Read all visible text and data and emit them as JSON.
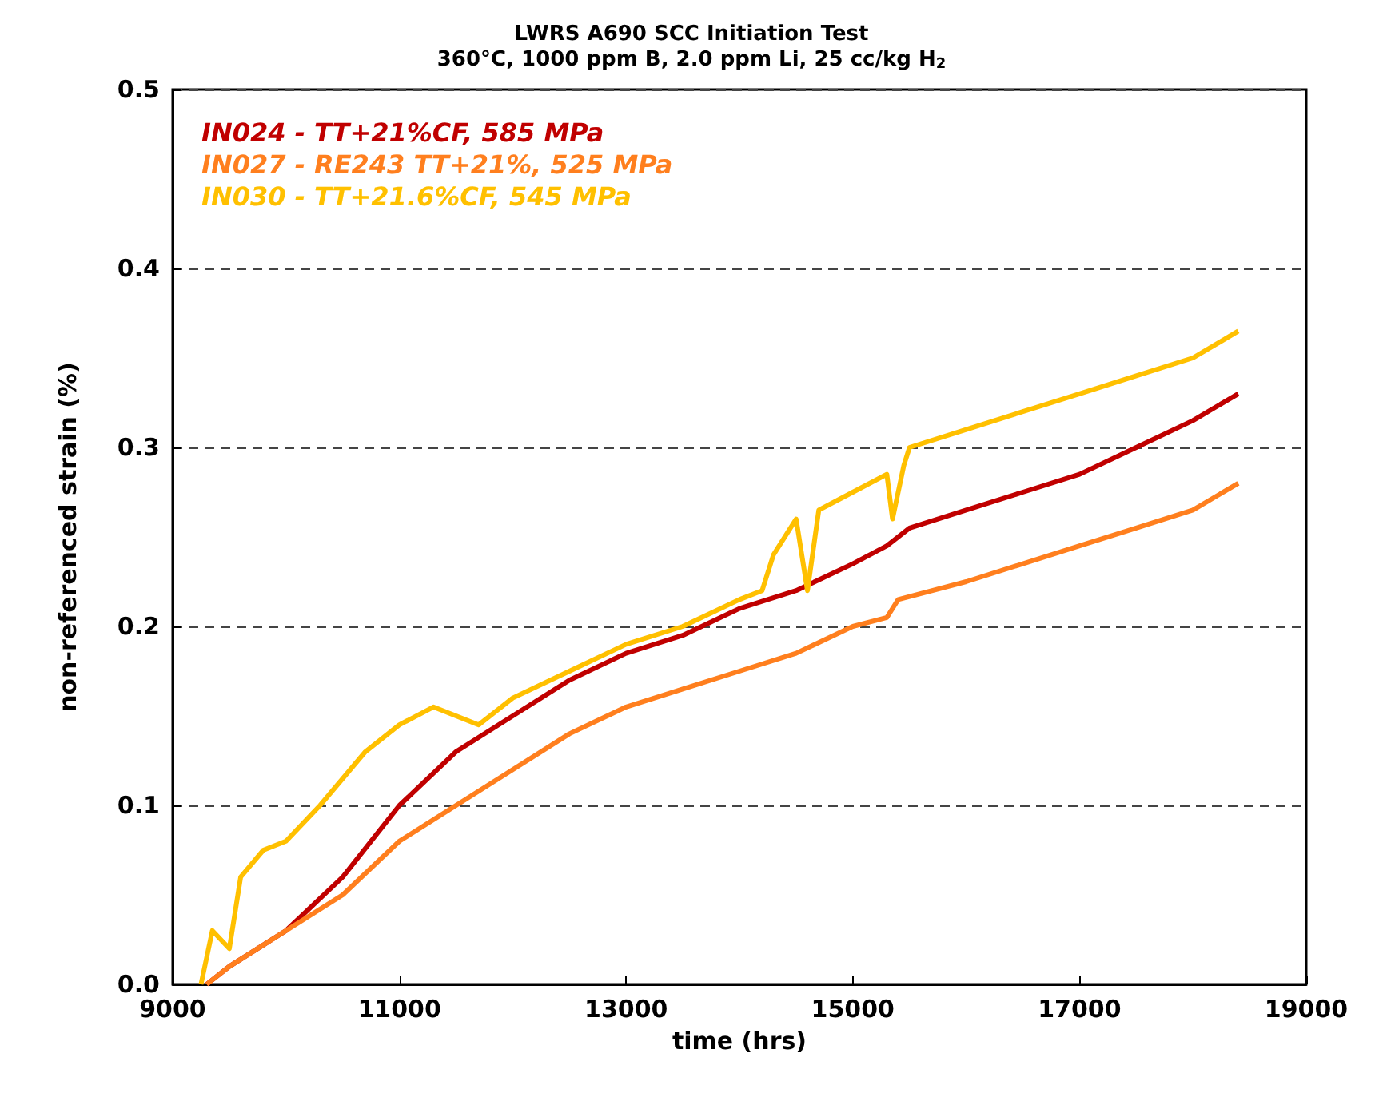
{
  "chart_data": {
    "type": "line",
    "title": "LWRS A690 SCC Initiation Test",
    "subtitle": "360°C, 1000 ppm B, 2.0 ppm Li, 25 cc/kg H$_{2}$",
    "xlabel": "time (hrs)",
    "ylabel": "non-referenced strain (%)",
    "xlim": [
      9000,
      19000
    ],
    "xticks": [
      9000,
      11000,
      13000,
      15000,
      17000,
      19000
    ],
    "ylim": [
      0,
      0.5
    ],
    "yticks": [
      {
        "value": 0,
        "label": "0.0"
      },
      0.1,
      0.2,
      0.3,
      0.4,
      0.5
    ],
    "grid": "y",
    "legend": "top left",
    "marker": "none",
    "line_style": "solid",
    "series": [
      {
        "name": "IN024 - TT+21%CF, 585 MPa",
        "color": "#c00000",
        "x": [
          9300,
          9500,
          10000,
          10500,
          11000,
          11500,
          12000,
          12500,
          13000,
          13500,
          14000,
          14500,
          15000,
          15300,
          15500,
          16000,
          16500,
          17000,
          17500,
          18000,
          18400
        ],
        "values": [
          0,
          0.01,
          0.03,
          0.06,
          0.1,
          0.13,
          0.15,
          0.17,
          0.185,
          0.195,
          0.21,
          0.22,
          0.235,
          0.245,
          0.255,
          0.265,
          0.275,
          0.285,
          0.3,
          0.315,
          0.33
        ]
      },
      {
        "name": "IN027 - RE243 TT+21%, 525 MPa",
        "color": "#ff7f1e",
        "x": [
          9300,
          9500,
          10000,
          10500,
          11000,
          11500,
          12000,
          12500,
          13000,
          13500,
          14000,
          14500,
          15000,
          15300,
          15400,
          16000,
          16500,
          17000,
          17500,
          18000,
          18400
        ],
        "values": [
          0,
          0.01,
          0.03,
          0.05,
          0.08,
          0.1,
          0.12,
          0.14,
          0.155,
          0.165,
          0.175,
          0.185,
          0.2,
          0.205,
          0.215,
          0.225,
          0.235,
          0.245,
          0.255,
          0.265,
          0.28
        ]
      },
      {
        "name": "IN030 - TT+21.6%CF, 545 MPa",
        "color": "#ffc000",
        "x": [
          9250,
          9350,
          9500,
          9600,
          9800,
          10000,
          10300,
          10700,
          11000,
          11300,
          11700,
          12000,
          12500,
          13000,
          13500,
          14000,
          14200,
          14300,
          14500,
          14600,
          14700,
          15000,
          15300,
          15350,
          15450,
          15500,
          16000,
          16500,
          17000,
          17500,
          18000,
          18400
        ],
        "values": [
          0,
          0.03,
          0.02,
          0.06,
          0.075,
          0.08,
          0.1,
          0.13,
          0.145,
          0.155,
          0.145,
          0.16,
          0.175,
          0.19,
          0.2,
          0.215,
          0.22,
          0.24,
          0.26,
          0.22,
          0.265,
          0.275,
          0.285,
          0.26,
          0.29,
          0.3,
          0.31,
          0.32,
          0.33,
          0.34,
          0.35,
          0.365
        ]
      }
    ]
  }
}
